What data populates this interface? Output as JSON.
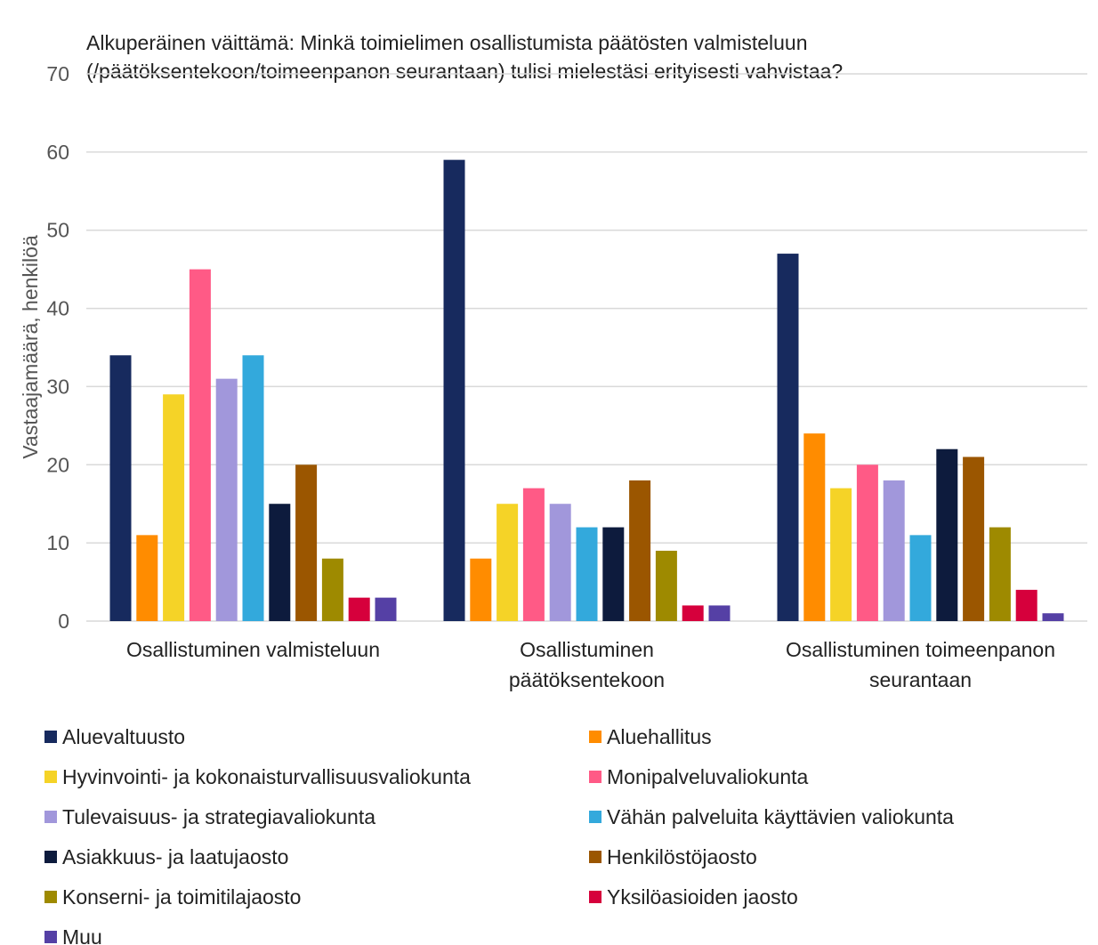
{
  "chart_data": {
    "type": "bar",
    "title": "Alkuperäinen väittämä: Minkä toimielimen osallistumista päätösten valmisteluun\n(/päätöksentekoon/toimeenpanon seurantaan) tulisi mielestäsi erityisesti vahvistaa?",
    "y_label": "Vastaajamäärä, henkilöä",
    "categories": [
      "Osallistuminen valmisteluun",
      "Osallistuminen\npäätöksentekoon",
      "Osallistuminen toimeenpanon\nseurantaan"
    ],
    "series": [
      {
        "name": "Aluevaltuusto",
        "color": "#172a5e",
        "values": [
          34,
          59,
          47
        ]
      },
      {
        "name": "Aluehallitus",
        "color": "#ff8c00",
        "values": [
          11,
          8,
          24
        ]
      },
      {
        "name": "Hyvinvointi- ja kokonaisturvallisuusvaliokunta",
        "color": "#f5d327",
        "values": [
          29,
          15,
          17
        ]
      },
      {
        "name": "Monipalveluvaliokunta",
        "color": "#ff5a86",
        "values": [
          45,
          17,
          20
        ]
      },
      {
        "name": "Tulevaisuus- ja strategiavaliokunta",
        "color": "#a197db",
        "values": [
          31,
          15,
          18
        ]
      },
      {
        "name": "Vähän palveluita käyttävien valiokunta",
        "color": "#33a9dc",
        "values": [
          34,
          12,
          11
        ]
      },
      {
        "name": "Asiakkuus- ja laatujaosto",
        "color": "#0d1b3d",
        "values": [
          15,
          12,
          22
        ]
      },
      {
        "name": "Henkilöstöjaosto",
        "color": "#9b5600",
        "values": [
          20,
          18,
          21
        ]
      },
      {
        "name": "Konserni- ja toimitilajaosto",
        "color": "#9e8a00",
        "values": [
          8,
          9,
          12
        ]
      },
      {
        "name": "Yksilöasioiden jaosto",
        "color": "#d6003c",
        "values": [
          3,
          2,
          4
        ]
      },
      {
        "name": "Muu",
        "color": "#5540a5",
        "values": [
          3,
          2,
          1
        ]
      }
    ],
    "ylim": [
      0,
      70
    ],
    "yticks": [
      0,
      10,
      20,
      30,
      40,
      50,
      60,
      70
    ],
    "grid": true,
    "legend": "bottom"
  }
}
